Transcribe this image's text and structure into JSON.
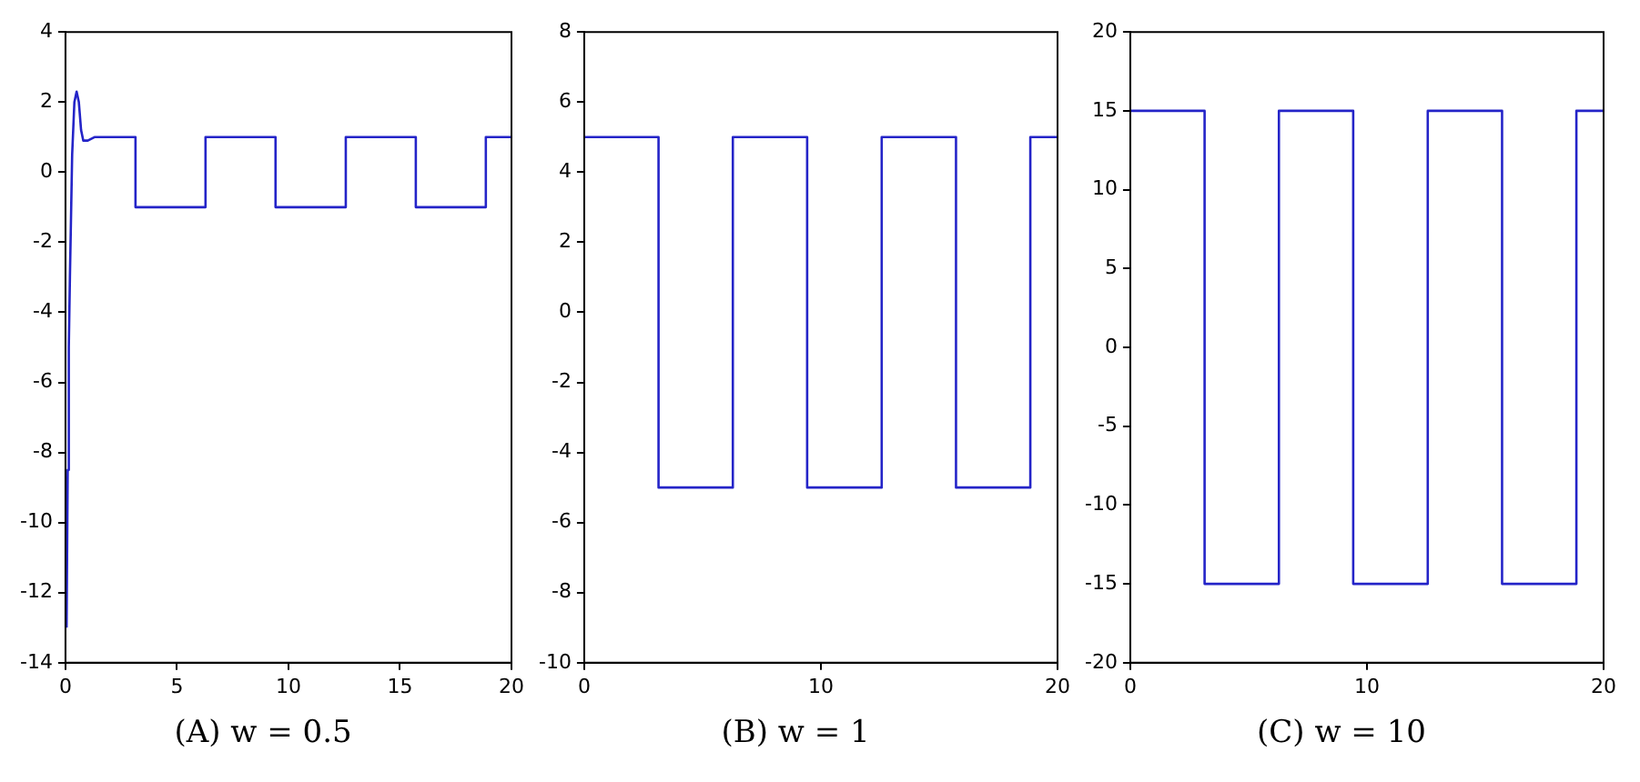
{
  "chart_data": [
    {
      "type": "line",
      "title": "(A) w = 0.5",
      "grid": false,
      "xlim": [
        0,
        20
      ],
      "xticks": [
        0,
        5,
        10,
        15,
        20
      ],
      "ylim": [
        -14,
        4
      ],
      "yticks": [
        -14,
        -12,
        -10,
        -8,
        -6,
        -4,
        -2,
        0,
        2,
        4
      ],
      "series": [
        {
          "color": "#2424c8",
          "x": [
            0.05,
            0.1,
            0.15,
            0.2,
            0.3,
            0.4,
            0.5,
            0.6,
            0.7,
            0.8,
            1.0,
            1.3,
            3.14,
            3.14,
            6.28,
            6.28,
            9.42,
            9.42,
            12.57,
            12.57,
            15.71,
            15.71,
            18.85,
            18.85,
            20
          ],
          "values": [
            -13,
            -8.5,
            -5,
            -3,
            0.5,
            2,
            2.3,
            2,
            1.2,
            0.9,
            0.9,
            1,
            1,
            -1,
            -1,
            1,
            1,
            -1,
            -1,
            1,
            1,
            -1,
            -1,
            1,
            1
          ]
        }
      ]
    },
    {
      "type": "line",
      "title": "(B) w = 1",
      "grid": false,
      "xlim": [
        0,
        20
      ],
      "xticks": [
        0,
        10,
        20
      ],
      "ylim": [
        -10,
        8
      ],
      "yticks": [
        -10,
        -8,
        -6,
        -4,
        -2,
        0,
        2,
        4,
        6,
        8
      ],
      "series": [
        {
          "color": "#2424c8",
          "x": [
            0,
            3.14,
            3.14,
            6.28,
            6.28,
            9.42,
            9.42,
            12.57,
            12.57,
            15.71,
            15.71,
            18.85,
            18.85,
            20
          ],
          "values": [
            5,
            5,
            -5,
            -5,
            5,
            5,
            -5,
            -5,
            5,
            5,
            -5,
            -5,
            5,
            5
          ]
        }
      ]
    },
    {
      "type": "line",
      "title": "(C) w = 10",
      "grid": false,
      "xlim": [
        0,
        20
      ],
      "xticks": [
        0,
        10,
        20
      ],
      "ylim": [
        -20,
        20
      ],
      "yticks": [
        -20,
        -15,
        -10,
        -5,
        0,
        5,
        10,
        15,
        20
      ],
      "series": [
        {
          "color": "#2424c8",
          "x": [
            0,
            3.14,
            3.14,
            6.28,
            6.28,
            9.42,
            9.42,
            12.57,
            12.57,
            15.71,
            15.71,
            18.85,
            18.85,
            20
          ],
          "values": [
            15,
            15,
            -15,
            -15,
            15,
            15,
            -15,
            -15,
            15,
            15,
            -15,
            -15,
            15,
            15
          ]
        }
      ]
    }
  ]
}
